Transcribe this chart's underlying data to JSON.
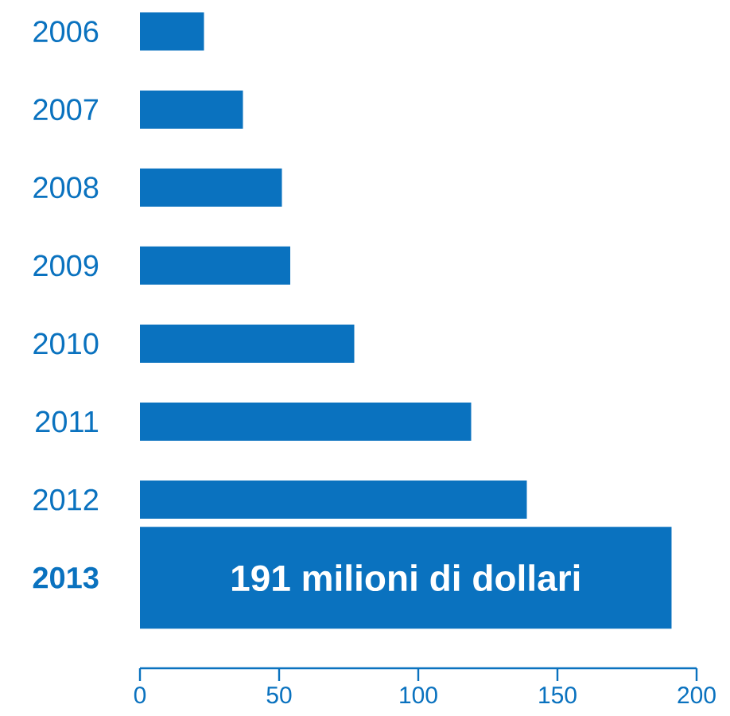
{
  "chart_data": {
    "type": "bar",
    "orientation": "horizontal",
    "categories": [
      "2006",
      "2007",
      "2008",
      "2009",
      "2010",
      "2011",
      "2012",
      "2013"
    ],
    "values": [
      23,
      37,
      51,
      54,
      77,
      119,
      139,
      191
    ],
    "value_labels": [
      null,
      null,
      null,
      null,
      null,
      null,
      null,
      "191 milioni di dollari"
    ],
    "color": "#0a72bf",
    "xlim": [
      0,
      200
    ],
    "xticks": [
      0,
      50,
      100,
      150,
      200
    ]
  }
}
